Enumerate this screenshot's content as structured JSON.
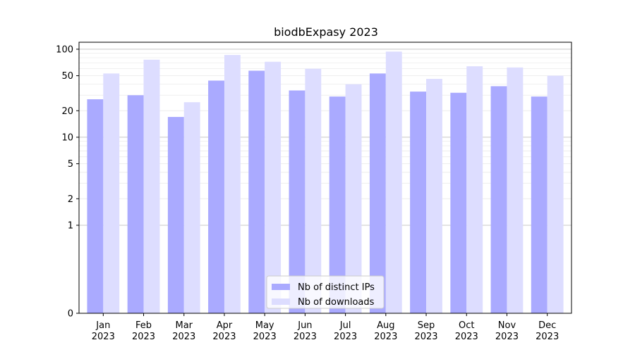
{
  "chart_data": {
    "type": "bar",
    "title": "biodbExpasy 2023",
    "xlabel": "",
    "ylabel": "",
    "scale": "symlog",
    "ylim": [
      0,
      120
    ],
    "yticks": [
      0,
      1,
      2,
      5,
      10,
      20,
      50,
      100
    ],
    "ytick_labels": [
      "0",
      "1",
      "2",
      "5",
      "10",
      "20",
      "50",
      "100"
    ],
    "categories": [
      "Jan\n2023",
      "Feb\n2023",
      "Mar\n2023",
      "Apr\n2023",
      "May\n2023",
      "Jun\n2023",
      "Jul\n2023",
      "Aug\n2023",
      "Sep\n2023",
      "Oct\n2023",
      "Nov\n2023",
      "Dec\n2023"
    ],
    "series": [
      {
        "name": "Nb of distinct IPs",
        "color": "#aaaaff",
        "values": [
          27,
          30,
          17,
          44,
          57,
          34,
          29,
          53,
          33,
          32,
          38,
          29
        ]
      },
      {
        "name": "Nb of downloads",
        "color": "#ddddff",
        "values": [
          53,
          76,
          25,
          86,
          72,
          60,
          40,
          94,
          46,
          64,
          62,
          50
        ]
      }
    ],
    "legend": {
      "placement": "bottom-center"
    },
    "grid": true
  }
}
